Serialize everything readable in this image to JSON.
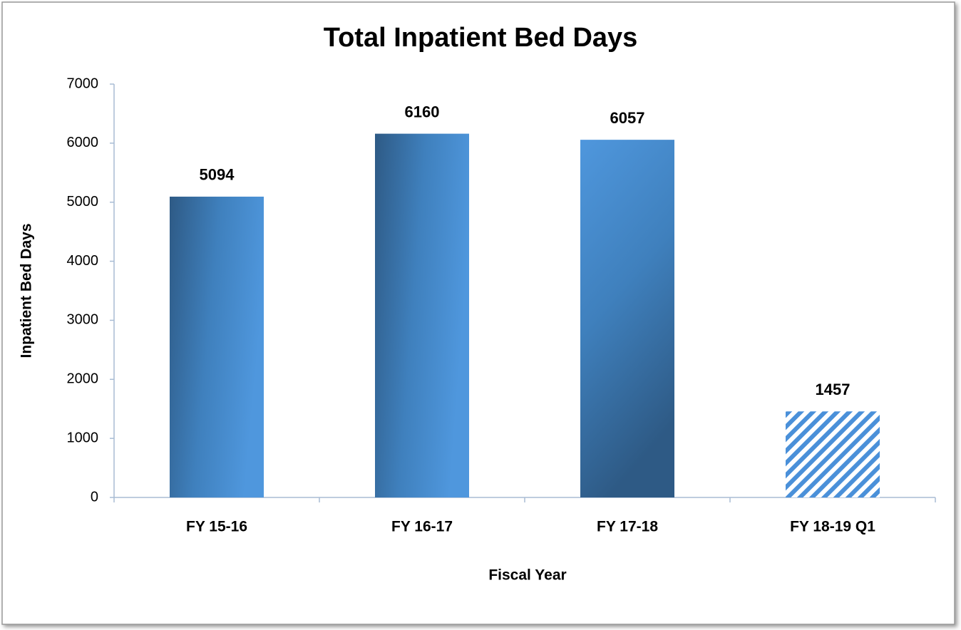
{
  "chart_data": {
    "type": "bar",
    "title": "Total Inpatient Bed Days",
    "x_label": "Fiscal Year",
    "y_label": "Inpatient Bed Days",
    "categories": [
      "FY 15-16",
      "FY 16-17",
      "FY 17-18",
      "FY 18-19 Q1"
    ],
    "values": [
      5094,
      6160,
      6057,
      1457
    ],
    "color": "#4a90d9",
    "dark_color": "#2e5a85",
    "hatched": [
      false,
      false,
      false,
      true
    ],
    "ylim": [
      0,
      7000
    ],
    "yticks": [
      0,
      1000,
      2000,
      3000,
      4000,
      5000,
      6000,
      7000
    ],
    "grid": false
  }
}
